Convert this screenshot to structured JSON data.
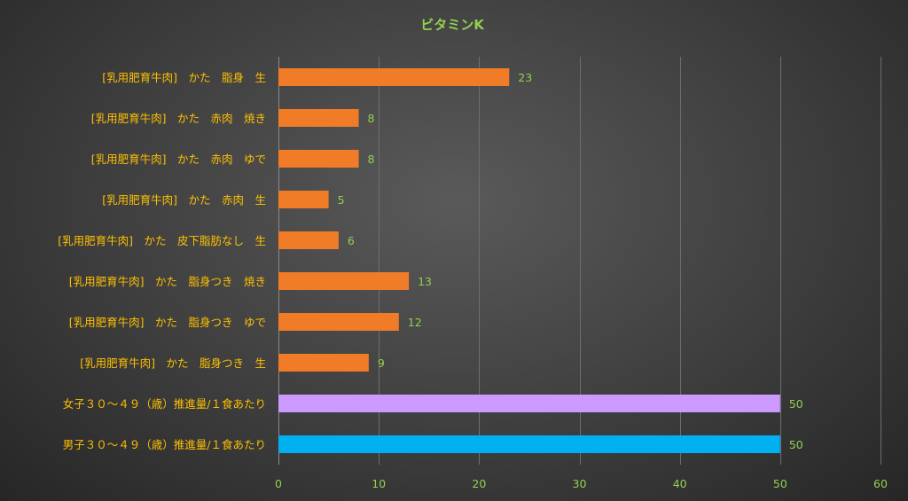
{
  "chart_data": {
    "type": "bar",
    "orientation": "horizontal",
    "title": "ビタミンK",
    "categories": [
      "[乳用肥育牛肉]　かた　脂身　生",
      "[乳用肥育牛肉]　かた　赤肉　焼き",
      "[乳用肥育牛肉]　かた　赤肉　ゆで",
      "[乳用肥育牛肉]　かた　赤肉　生",
      "[乳用肥育牛肉]　かた　皮下脂肪なし　生",
      "[乳用肥育牛肉]　かた　脂身つき　焼き",
      "[乳用肥育牛肉]　かた　脂身つき　ゆで",
      "[乳用肥育牛肉]　かた　脂身つき　生",
      "女子３０～４９（歳）推進量/１食あたり",
      "男子３０～４９（歳）推進量/１食あたり"
    ],
    "values": [
      23,
      8,
      8,
      5,
      6,
      13,
      12,
      9,
      50,
      50
    ],
    "bar_colors": [
      "#f07c28",
      "#f07c28",
      "#f07c28",
      "#f07c28",
      "#f07c28",
      "#f07c28",
      "#f07c28",
      "#f07c28",
      "#cc99ff",
      "#00b0f0"
    ],
    "xlim": [
      0,
      60
    ],
    "xticks": [
      0,
      10,
      20,
      30,
      40,
      50,
      60
    ],
    "grid": true,
    "legend": "none",
    "colors": {
      "title": "#92d050",
      "category_labels": "#ffc000",
      "tick_labels": "#92d050",
      "data_labels": "#92d050"
    }
  }
}
